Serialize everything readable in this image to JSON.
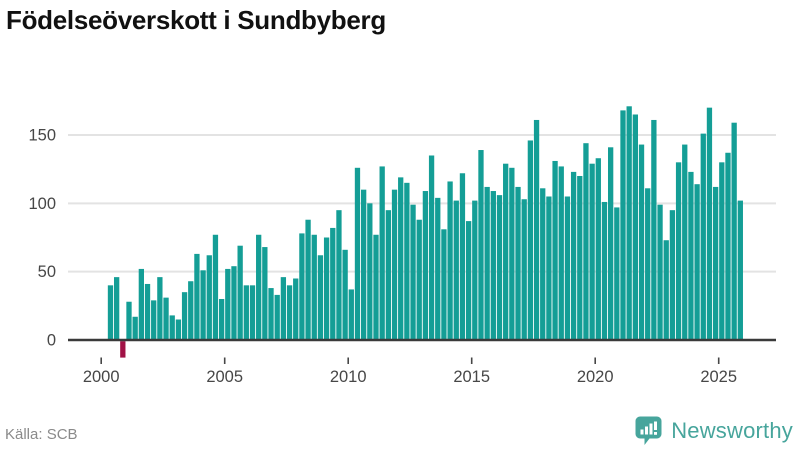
{
  "title": "Födelseöverskott i Sundbyberg",
  "source": "Källa: SCB",
  "logo": {
    "text": "Newsworthy"
  },
  "colors": {
    "bar": "#149e96",
    "bar_negative": "#a11246",
    "grid": "#e3e3e3",
    "axis": "#3a3a3a",
    "tick_label": "#474747",
    "title": "#111111",
    "source": "#8a8a8a",
    "logo": "#47a59c"
  },
  "chart_data": {
    "type": "bar",
    "title": "Födelseöverskott i Sundbyberg",
    "xlabel": "",
    "ylabel": "",
    "period": "quarterly",
    "x_range": [
      "2000-Q2",
      "2025-Q4"
    ],
    "ylim": [
      -20,
      180
    ],
    "y_ticks": [
      0,
      50,
      100,
      150
    ],
    "x_ticks": [
      2000,
      2005,
      2010,
      2015,
      2020,
      2025
    ],
    "grid": "horizontal",
    "legend": "none",
    "series_name": "Födelseöverskott",
    "years": [
      {
        "year": 2000,
        "values": [
          null,
          40,
          46,
          -12
        ]
      },
      {
        "year": 2001,
        "values": [
          28,
          17,
          52,
          41
        ]
      },
      {
        "year": 2002,
        "values": [
          29,
          46,
          31,
          18
        ]
      },
      {
        "year": 2003,
        "values": [
          15,
          35,
          43,
          63
        ]
      },
      {
        "year": 2004,
        "values": [
          51,
          62,
          77,
          30
        ]
      },
      {
        "year": 2005,
        "values": [
          52,
          54,
          69,
          40
        ]
      },
      {
        "year": 2006,
        "values": [
          40,
          77,
          68,
          38
        ]
      },
      {
        "year": 2007,
        "values": [
          33,
          46,
          40,
          45
        ]
      },
      {
        "year": 2008,
        "values": [
          78,
          88,
          77,
          62
        ]
      },
      {
        "year": 2009,
        "values": [
          75,
          82,
          95,
          66
        ]
      },
      {
        "year": 2010,
        "values": [
          37,
          126,
          110,
          100
        ]
      },
      {
        "year": 2011,
        "values": [
          77,
          127,
          95,
          110
        ]
      },
      {
        "year": 2012,
        "values": [
          119,
          115,
          99,
          88
        ]
      },
      {
        "year": 2013,
        "values": [
          109,
          135,
          104,
          81
        ]
      },
      {
        "year": 2014,
        "values": [
          116,
          102,
          122,
          87
        ]
      },
      {
        "year": 2015,
        "values": [
          102,
          139,
          112,
          109
        ]
      },
      {
        "year": 2016,
        "values": [
          106,
          129,
          126,
          112
        ]
      },
      {
        "year": 2017,
        "values": [
          103,
          146,
          161,
          111
        ]
      },
      {
        "year": 2018,
        "values": [
          105,
          131,
          127,
          105
        ]
      },
      {
        "year": 2019,
        "values": [
          123,
          120,
          144,
          129
        ]
      },
      {
        "year": 2020,
        "values": [
          133,
          101,
          141,
          97
        ]
      },
      {
        "year": 2021,
        "values": [
          168,
          171,
          165,
          143
        ]
      },
      {
        "year": 2022,
        "values": [
          111,
          161,
          99,
          73
        ]
      },
      {
        "year": 2023,
        "values": [
          95,
          130,
          143,
          123
        ]
      },
      {
        "year": 2024,
        "values": [
          114,
          151,
          170,
          112
        ]
      },
      {
        "year": 2025,
        "values": [
          130,
          137,
          159,
          102
        ]
      }
    ]
  }
}
